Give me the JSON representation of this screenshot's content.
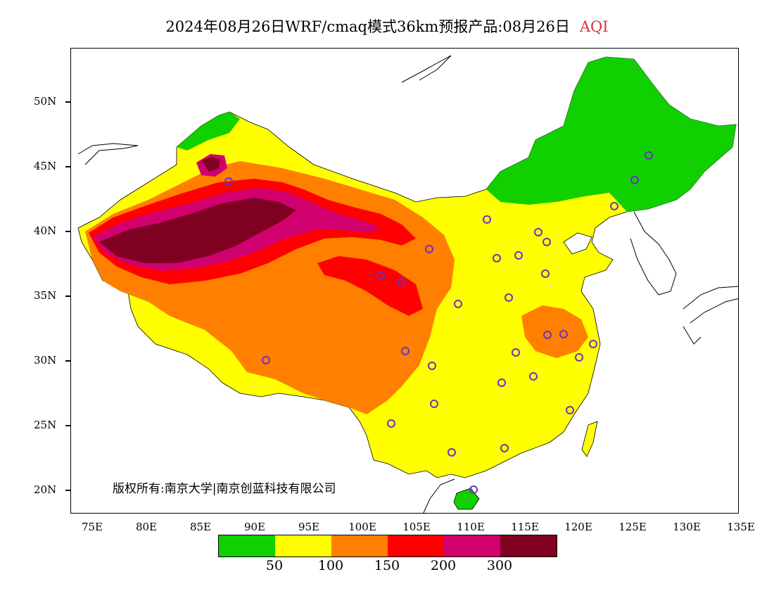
{
  "title": {
    "main": "2024年08月26日WRF/cmaq模式36km预报产品:08月26日",
    "pollutant": "AQI"
  },
  "lat_axis": [
    "50N",
    "45N",
    "40N",
    "35N",
    "30N",
    "25N",
    "20N"
  ],
  "lon_axis": [
    "75E",
    "80E",
    "85E",
    "90E",
    "95E",
    "100E",
    "105E",
    "110E",
    "115E",
    "120E",
    "125E",
    "130E",
    "135E"
  ],
  "copyright": "版权所有:南京大学|南京创蓝科技有限公司",
  "legend": {
    "colors": [
      "#10d000",
      "#ffff00",
      "#ff7f00",
      "#ff0000",
      "#d0006f",
      "#7f0020"
    ],
    "thresholds": [
      "50",
      "100",
      "150",
      "200",
      "300"
    ]
  }
}
